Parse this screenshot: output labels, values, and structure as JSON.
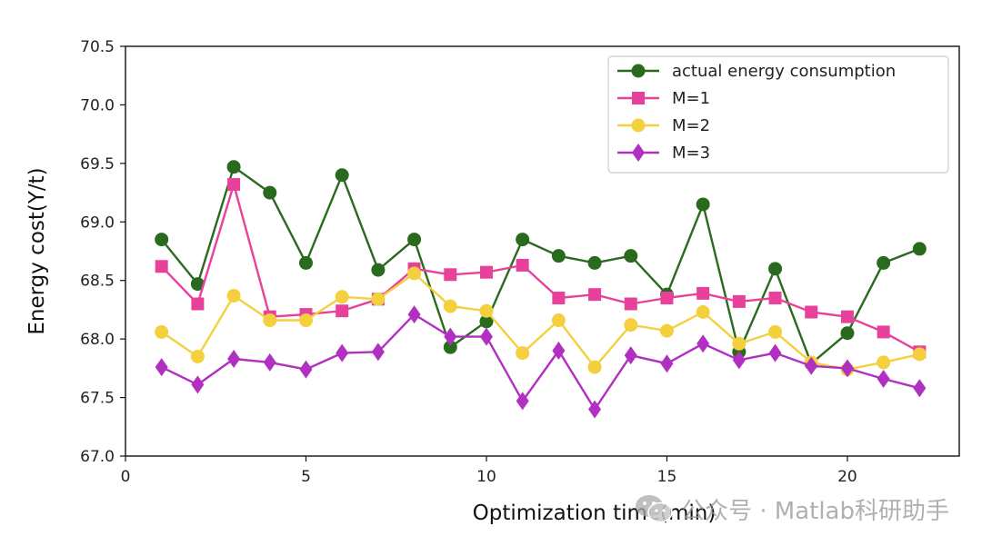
{
  "chart_data": {
    "type": "line",
    "xlabel": "Optimization time(min)",
    "ylabel": "Energy cost(Y/t)",
    "xlim": [
      0,
      23.1
    ],
    "ylim": [
      67.0,
      70.5
    ],
    "xticks": [
      0,
      5,
      10,
      15,
      20
    ],
    "xtick_labels": [
      "0",
      "5",
      "10",
      "15",
      "20"
    ],
    "yticks": [
      67.0,
      67.5,
      68.0,
      68.5,
      69.0,
      69.5,
      70.0,
      70.5
    ],
    "ytick_labels": [
      "67.0",
      "67.5",
      "68.0",
      "68.5",
      "69.0",
      "69.5",
      "70.0",
      "70.5"
    ],
    "legend_position": "top-right",
    "grid": false,
    "x": [
      1,
      2,
      3,
      4,
      5,
      6,
      7,
      8,
      9,
      10,
      11,
      12,
      13,
      14,
      15,
      16,
      17,
      18,
      19,
      20,
      21,
      22
    ],
    "series": [
      {
        "name": "actual energy consumption",
        "color": "#2a6a1e",
        "marker": "circle",
        "values": [
          68.85,
          68.47,
          69.47,
          69.25,
          68.65,
          69.4,
          68.59,
          68.85,
          67.93,
          68.15,
          68.85,
          68.71,
          68.65,
          68.71,
          68.38,
          69.15,
          67.89,
          68.6,
          67.79,
          68.05,
          68.65,
          68.77
        ]
      },
      {
        "name": "M=1",
        "color": "#e8419b",
        "marker": "square",
        "values": [
          68.62,
          68.3,
          69.32,
          68.19,
          68.21,
          68.24,
          68.34,
          68.6,
          68.55,
          68.57,
          68.63,
          68.35,
          68.38,
          68.3,
          68.35,
          68.39,
          68.32,
          68.35,
          68.23,
          68.19,
          68.06,
          67.89
        ]
      },
      {
        "name": "M=2",
        "color": "#f4d03f",
        "marker": "circle",
        "values": [
          68.06,
          67.85,
          68.37,
          68.16,
          68.16,
          68.36,
          68.34,
          68.56,
          68.28,
          68.24,
          67.88,
          68.16,
          67.76,
          68.12,
          68.07,
          68.23,
          67.96,
          68.06,
          67.8,
          67.74,
          67.8,
          67.87
        ]
      },
      {
        "name": "M=3",
        "color": "#b12fc1",
        "marker": "diamond",
        "values": [
          67.76,
          67.61,
          67.83,
          67.8,
          67.74,
          67.88,
          67.89,
          68.21,
          68.02,
          68.02,
          67.47,
          67.9,
          67.4,
          67.86,
          67.79,
          67.96,
          67.82,
          67.88,
          67.77,
          67.75,
          67.66,
          67.58
        ]
      }
    ]
  },
  "watermark": {
    "text": "公众号 · Matlab科研助手",
    "icon": "wechat-icon"
  }
}
